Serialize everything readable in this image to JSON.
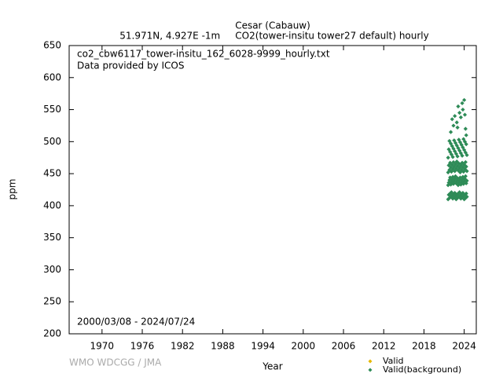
{
  "chart_data": {
    "type": "scatter",
    "title": "Cesar (Cabauw)",
    "subtitle": "51.971N, 4.927E -1m     CO2(tower-insitu tower27 default) hourly",
    "annotations": [
      "co2_cbw6117_tower-insitu_162_6028-9999_hourly.txt",
      "Data provided by ICOS",
      "2000/03/08 - 2024/07/24",
      "WMO WDCGG / JMA"
    ],
    "xlabel": "Year",
    "ylabel": "ppm",
    "xlim": [
      1965.1,
      2025.8
    ],
    "ylim": [
      200,
      650
    ],
    "xticks": [
      1970,
      1976,
      1982,
      1988,
      1994,
      2000,
      2006,
      2012,
      2018,
      2024
    ],
    "yticks": [
      200,
      250,
      300,
      350,
      400,
      450,
      500,
      550,
      600,
      650
    ],
    "legend": "lower right",
    "series": [
      {
        "name": "Valid",
        "color": "#e6b800",
        "x": [],
        "values": []
      },
      {
        "name": "Valid(background)",
        "color": "#2e8b57",
        "x": [
          2021.6,
          2021.7,
          2021.8,
          2021.9,
          2022.0,
          2022.1,
          2022.2,
          2022.3,
          2022.4,
          2022.5,
          2022.6,
          2022.7,
          2022.8,
          2022.9,
          2023.0,
          2023.1,
          2023.2,
          2023.3,
          2023.4,
          2023.5,
          2023.6,
          2023.7,
          2023.8,
          2023.9,
          2024.0,
          2024.1,
          2024.2,
          2024.3,
          2024.4,
          2021.6,
          2021.7,
          2021.8,
          2021.9,
          2022.0,
          2022.1,
          2022.2,
          2022.3,
          2022.4,
          2022.5,
          2022.6,
          2022.7,
          2022.8,
          2022.9,
          2023.0,
          2023.1,
          2023.2,
          2023.3,
          2023.4,
          2023.5,
          2023.6,
          2023.7,
          2023.8,
          2023.9,
          2024.0,
          2024.1,
          2024.2,
          2024.3,
          2024.4,
          2021.6,
          2021.7,
          2021.8,
          2021.9,
          2022.0,
          2022.1,
          2022.2,
          2022.3,
          2022.4,
          2022.5,
          2022.6,
          2022.7,
          2022.8,
          2022.9,
          2023.0,
          2023.1,
          2023.2,
          2023.3,
          2023.4,
          2023.5,
          2023.6,
          2023.7,
          2023.8,
          2023.9,
          2024.0,
          2024.1,
          2024.2,
          2024.3,
          2024.4,
          2021.6,
          2021.7,
          2021.8,
          2021.9,
          2022.0,
          2022.1,
          2022.2,
          2022.3,
          2022.4,
          2022.5,
          2022.6,
          2022.7,
          2022.8,
          2022.9,
          2023.0,
          2023.1,
          2023.2,
          2023.3,
          2023.4,
          2023.5,
          2023.6,
          2023.7,
          2023.8,
          2023.9,
          2024.0,
          2024.1,
          2024.2,
          2024.3,
          2024.4,
          2022.2,
          2022.4,
          2022.6,
          2022.9,
          2023.1,
          2023.3,
          2023.5,
          2023.7,
          2023.8,
          2024.0,
          2024.1,
          2024.2,
          2022.0,
          2023.0,
          2024.3
        ],
        "values": [
          410,
          417,
          412,
          419,
          414,
          421,
          416,
          411,
          418,
          413,
          420,
          415,
          410,
          417,
          412,
          419,
          414,
          421,
          416,
          411,
          418,
          413,
          420,
          415,
          410,
          417,
          412,
          419,
          414,
          432,
          436,
          440,
          444,
          433,
          437,
          441,
          445,
          434,
          438,
          442,
          446,
          435,
          439,
          443,
          432,
          436,
          440,
          444,
          433,
          437,
          441,
          445,
          434,
          438,
          442,
          446,
          435,
          439,
          452,
          463,
          456,
          467,
          460,
          453,
          464,
          457,
          468,
          461,
          454,
          465,
          458,
          469,
          462,
          455,
          466,
          459,
          452,
          463,
          456,
          467,
          460,
          453,
          464,
          457,
          468,
          461,
          454,
          475,
          488,
          501,
          484,
          497,
          480,
          493,
          476,
          489,
          502,
          485,
          498,
          481,
          494,
          477,
          490,
          503,
          486,
          499,
          482,
          495,
          478,
          491,
          504,
          487,
          500,
          483,
          496,
          479,
          535,
          525,
          540,
          530,
          555,
          545,
          538,
          560,
          550,
          565,
          542,
          520,
          515,
          522,
          510
        ]
      }
    ]
  }
}
